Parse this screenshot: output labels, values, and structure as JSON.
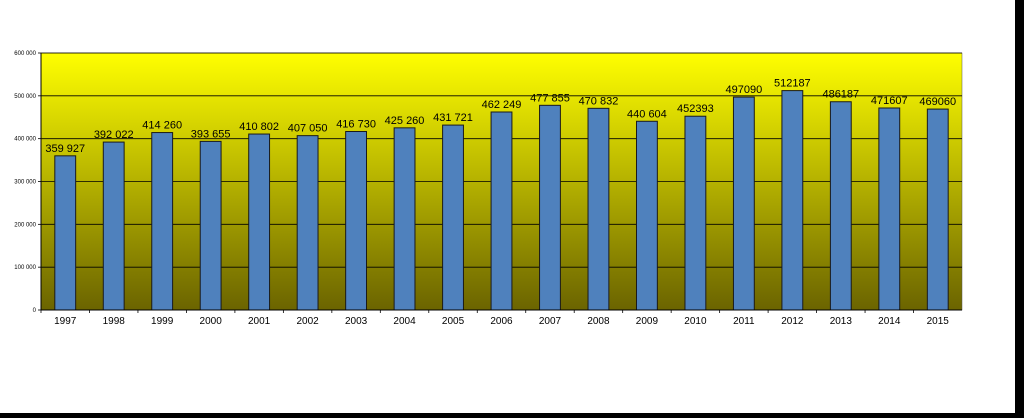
{
  "chart_data": {
    "type": "bar",
    "title": "",
    "xlabel": "",
    "ylabel": "",
    "ylim": [
      0,
      600000
    ],
    "y_ticks": [
      {
        "value": 0,
        "label": "0"
      },
      {
        "value": 100000,
        "label": "100 000"
      },
      {
        "value": 200000,
        "label": "200 000"
      },
      {
        "value": 300000,
        "label": "300 000"
      },
      {
        "value": 400000,
        "label": "400 000"
      },
      {
        "value": 500000,
        "label": "500 000"
      },
      {
        "value": 600000,
        "label": "600 000"
      }
    ],
    "grid": true,
    "legend": "none",
    "categories": [
      "1997",
      "1998",
      "1999",
      "2000",
      "2001",
      "2002",
      "2003",
      "2004",
      "2005",
      "2006",
      "2007",
      "2008",
      "2009",
      "2010",
      "2011",
      "2012",
      "2013",
      "2014",
      "2015"
    ],
    "values": [
      359927,
      392022,
      414260,
      393655,
      410802,
      407050,
      416730,
      425260,
      431721,
      462249,
      477855,
      470832,
      440604,
      452393,
      497090,
      512187,
      486187,
      471607,
      469060
    ],
    "data_labels": [
      "359 927",
      "392 022",
      "414 260",
      "393 655",
      "410 802",
      "407 050",
      "416 730",
      "425 260",
      "431 721",
      "462 249",
      "477 855",
      "470 832",
      "440 604",
      "452393",
      "497090",
      "512187",
      "486187",
      "471607",
      "469060"
    ],
    "colors": {
      "bar_fill": "#4f81bd",
      "bar_stroke": "#1a1a1a",
      "plot_top": "#ffff00",
      "plot_bottom": "#6b6400",
      "gridline": "#000000",
      "frame": "#ffffff",
      "border": "#000000"
    }
  }
}
